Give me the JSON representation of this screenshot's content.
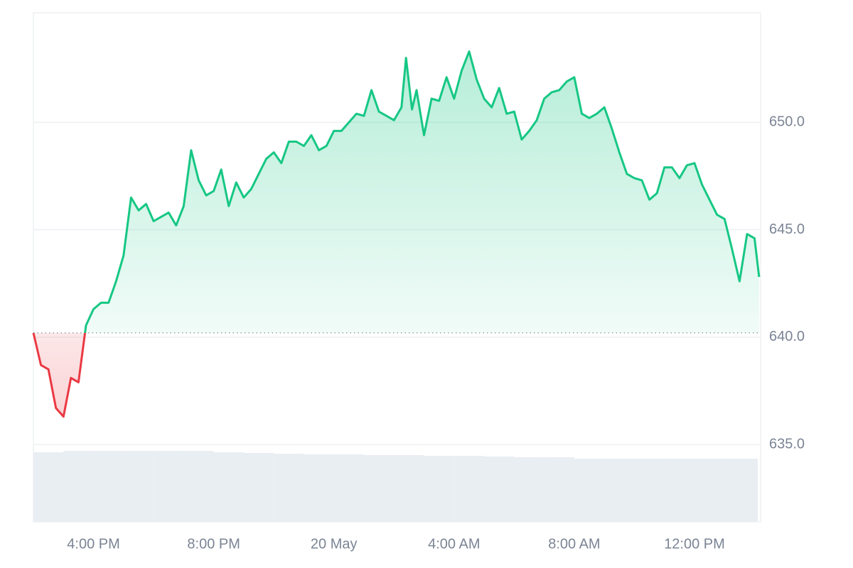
{
  "chart_data": {
    "type": "line",
    "x": [
      14,
      14.25,
      14.5,
      14.75,
      15,
      15.25,
      15.5,
      15.75,
      16,
      16.25,
      16.5,
      16.75,
      17,
      17.25,
      17.5,
      17.75,
      18,
      18.25,
      18.5,
      18.75,
      19,
      19.25,
      19.5,
      19.75,
      20,
      20.25,
      20.5,
      20.75,
      21,
      21.25,
      21.5,
      21.75,
      22,
      22.25,
      22.5,
      22.75,
      23,
      23.25,
      23.5,
      23.75,
      24,
      24.25,
      24.5,
      24.75,
      25,
      25.25,
      25.5,
      25.75,
      26,
      26.25,
      26.4,
      26.6,
      26.75,
      27,
      27.25,
      27.5,
      27.75,
      28,
      28.25,
      28.5,
      28.75,
      29,
      29.25,
      29.5,
      29.75,
      30,
      30.25,
      30.5,
      30.75,
      31,
      31.25,
      31.5,
      31.75,
      32,
      32.25,
      32.5,
      32.75,
      33,
      33.25,
      33.5,
      33.75,
      34,
      34.25,
      34.5,
      34.75,
      35,
      35.25,
      35.5,
      35.75,
      36,
      36.25,
      36.5,
      36.75,
      37,
      37.25,
      37.5,
      37.75,
      38,
      38.15
    ],
    "values": [
      640.2,
      638.7,
      638.5,
      636.7,
      636.3,
      638.1,
      637.9,
      640.55,
      641.3,
      641.6,
      641.6,
      642.6,
      643.8,
      646.5,
      645.9,
      646.2,
      645.4,
      645.6,
      645.8,
      645.2,
      646.1,
      648.7,
      647.3,
      646.6,
      646.8,
      647.8,
      646.1,
      647.2,
      646.5,
      646.9,
      647.6,
      648.3,
      648.6,
      648.1,
      649.1,
      649.1,
      648.9,
      649.4,
      648.7,
      648.9,
      649.6,
      649.6,
      650.0,
      650.4,
      650.3,
      651.5,
      650.5,
      650.3,
      650.1,
      650.7,
      653.0,
      650.6,
      651.5,
      649.4,
      651.1,
      651.0,
      652.1,
      651.1,
      652.4,
      653.3,
      652.0,
      651.1,
      650.7,
      651.6,
      650.4,
      650.5,
      649.2,
      649.6,
      650.1,
      651.1,
      651.4,
      651.5,
      651.9,
      652.1,
      650.4,
      650.2,
      650.4,
      650.7,
      649.7,
      648.6,
      647.6,
      647.4,
      647.3,
      646.4,
      646.7,
      647.9,
      647.9,
      647.4,
      648.0,
      648.1,
      647.1,
      646.4,
      645.7,
      645.5,
      644.1,
      642.6,
      644.8,
      644.6,
      642.8
    ],
    "baseline": 640.2,
    "up_color": "#16c784",
    "down_color": "#ea3943",
    "xlim": [
      14,
      38.2
    ],
    "xticks": [
      {
        "value": 16,
        "label": "4:00 PM"
      },
      {
        "value": 20,
        "label": "8:00 PM"
      },
      {
        "value": 24,
        "label": "20 May"
      },
      {
        "value": 28,
        "label": "4:00 AM"
      },
      {
        "value": 32,
        "label": "8:00 AM"
      },
      {
        "value": 36,
        "label": "12:00 PM"
      }
    ],
    "ylim": [
      631.4,
      655.1
    ],
    "yticks": [
      {
        "value": 635,
        "label": "635.0"
      },
      {
        "value": 640,
        "label": "640.0"
      },
      {
        "value": 645,
        "label": "645.0"
      },
      {
        "value": 650,
        "label": "650.0"
      }
    ],
    "grid": true,
    "volume": {
      "color": "#e9eef3",
      "ylim": [
        0,
        100
      ],
      "x": [
        14,
        15,
        16,
        17,
        18,
        19,
        20,
        21,
        22,
        23,
        24,
        25,
        26,
        27,
        28,
        29,
        30,
        31,
        32,
        33,
        34,
        35,
        36,
        37
      ],
      "values": [
        98,
        100,
        100,
        100,
        100,
        100,
        98,
        97,
        96,
        95,
        95,
        94,
        94,
        93,
        93,
        92,
        91,
        91,
        89,
        89,
        89,
        89,
        89,
        89
      ]
    }
  }
}
